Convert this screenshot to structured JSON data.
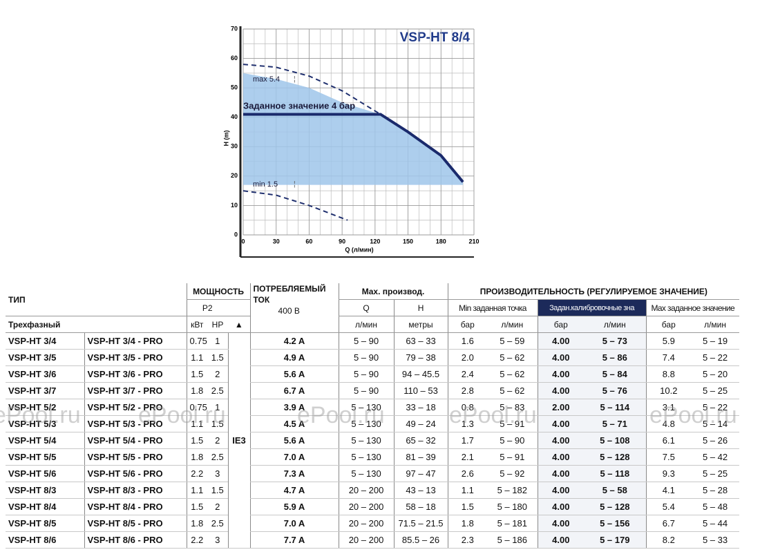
{
  "chart_data": {
    "type": "line",
    "title": "VSP-HT 8/4",
    "ylabel": "H (m)",
    "xlabel": "Q (л/мин)",
    "xlim": [
      0,
      210
    ],
    "ylim": [
      0,
      70
    ],
    "xticks": [
      0,
      30,
      60,
      90,
      120,
      150,
      180,
      210
    ],
    "yticks": [
      0,
      10,
      20,
      30,
      40,
      50,
      60,
      70
    ],
    "grid": true,
    "annotations": [
      "max 5.4",
      "min 1.5",
      "Заданное значение 4 бар"
    ],
    "area": {
      "color": "#9fc5ea",
      "x": [
        0,
        30,
        60,
        90,
        125,
        150,
        180,
        200
      ],
      "top": [
        55,
        53,
        50,
        45,
        41,
        35,
        27,
        18
      ],
      "bottom": [
        17,
        17,
        17,
        17,
        17,
        17,
        17,
        17
      ]
    },
    "series": [
      {
        "color": "#1f2f6e",
        "dashed": true,
        "x": [
          0,
          30,
          60,
          90,
          125
        ],
        "values": [
          58,
          57,
          54,
          49,
          41
        ]
      },
      {
        "color": "#1a2a6c",
        "dashed": false,
        "x": [
          0,
          125,
          150,
          180,
          200
        ],
        "values": [
          41,
          41,
          35,
          27,
          18
        ]
      },
      {
        "color": "#1f2f6e",
        "dashed": true,
        "x": [
          0,
          30,
          60,
          95
        ],
        "values": [
          15,
          13.5,
          10,
          5
        ]
      }
    ]
  },
  "table": {
    "header": {
      "type": "ТИП",
      "power": "МОЩНОСТЬ",
      "current": "ПОТРЕБЛЯЕМЫЙ ТОК",
      "voltage": "400 В",
      "maxperf": "Max. производ.",
      "perf": "ПРОИЗВОДИТЕЛЬНОСТЬ (РЕГУЛИРУЕМОЕ ЗНАЧЕНИЕ)",
      "p2": "P2",
      "q": "Q",
      "h": "H",
      "min": "Min заданная точка",
      "set": "Задан.калибровочные зна",
      "max": "Max заданное значение",
      "phase": "Трехфазный",
      "units": [
        "кВт",
        "HP",
        "▲",
        "л/мин",
        "метры",
        "бар",
        "л/мин",
        "бар",
        "л/мин",
        "бар",
        "л/мин"
      ]
    },
    "ie": "IE3",
    "rows": [
      [
        "VSP-HT 3/4",
        "VSP-HT 3/4 - PRO",
        "0.75",
        "1",
        "4.2 A",
        "5 – 90",
        "63 – 33",
        "1.6",
        "5 – 59",
        "4.00",
        "5 – 73",
        "5.9",
        "5 – 19"
      ],
      [
        "VSP-HT 3/5",
        "VSP-HT 3/5 - PRO",
        "1.1",
        "1.5",
        "4.9 A",
        "5 – 90",
        "79 – 38",
        "2.0",
        "5 – 62",
        "4.00",
        "5 – 86",
        "7.4",
        "5 – 22"
      ],
      [
        "VSP-HT 3/6",
        "VSP-HT 3/6 - PRO",
        "1.5",
        "2",
        "5.6 A",
        "5 – 90",
        "94 – 45.5",
        "2.4",
        "5 – 62",
        "4.00",
        "5 – 84",
        "8.8",
        "5 – 20"
      ],
      [
        "VSP-HT 3/7",
        "VSP-HT 3/7 - PRO",
        "1.8",
        "2.5",
        "6.7 A",
        "5 – 90",
        "110 – 53",
        "2.8",
        "5 – 62",
        "4.00",
        "5 – 76",
        "10.2",
        "5 – 25"
      ],
      [
        "VSP-HT 5/2",
        "VSP-HT 5/2 - PRO",
        "0.75",
        "1",
        "3.9 A",
        "5 – 130",
        "33 – 18",
        "0.8",
        "5 – 83",
        "2.00",
        "5 – 114",
        "3.1",
        "5 – 22"
      ],
      [
        "VSP-HT 5/3",
        "VSP-HT 5/3 - PRO",
        "1.1",
        "1.5",
        "4.5 A",
        "5 – 130",
        "49 – 24",
        "1.3",
        "5 – 91",
        "4.00",
        "5 – 71",
        "4.8",
        "5 – 14"
      ],
      [
        "VSP-HT 5/4",
        "VSP-HT 5/4 - PRO",
        "1.5",
        "2",
        "5.6 A",
        "5 – 130",
        "65 – 32",
        "1.7",
        "5 – 90",
        "4.00",
        "5 – 108",
        "6.1",
        "5 – 26"
      ],
      [
        "VSP-HT 5/5",
        "VSP-HT 5/5 - PRO",
        "1.8",
        "2.5",
        "7.0 A",
        "5 – 130",
        "81 – 39",
        "2.1",
        "5 – 91",
        "4.00",
        "5 – 128",
        "7.5",
        "5 – 42"
      ],
      [
        "VSP-HT 5/6",
        "VSP-HT 5/6 - PRO",
        "2.2",
        "3",
        "7.3 A",
        "5 – 130",
        "97 – 47",
        "2.6",
        "5 – 92",
        "4.00",
        "5 – 118",
        "9.3",
        "5 – 25"
      ],
      [
        "VSP-HT 8/3",
        "VSP-HT 8/3 - PRO",
        "1.1",
        "1.5",
        "4.7 A",
        "20 – 200",
        "43 – 13",
        "1.1",
        "5 – 182",
        "4.00",
        "5 – 58",
        "4.1",
        "5 – 28"
      ],
      [
        "VSP-HT 8/4",
        "VSP-HT 8/4 - PRO",
        "1.5",
        "2",
        "5.9 A",
        "20 – 200",
        "58 – 18",
        "1.5",
        "5 – 180",
        "4.00",
        "5 – 128",
        "5.4",
        "5 – 48"
      ],
      [
        "VSP-HT 8/5",
        "VSP-HT 8/5 - PRO",
        "1.8",
        "2.5",
        "7.0 A",
        "20 – 200",
        "71.5 – 21.5",
        "1.8",
        "5 – 181",
        "4.00",
        "5 – 156",
        "6.7",
        "5 – 44"
      ],
      [
        "VSP-HT 8/6",
        "VSP-HT 8/6 - PRO",
        "2.2",
        "3",
        "7.7 A",
        "20 – 200",
        "85.5 – 26",
        "2.3",
        "5 – 186",
        "4.00",
        "5 – 179",
        "8.2",
        "5 – 33"
      ]
    ]
  },
  "watermark": "ePool.ru"
}
